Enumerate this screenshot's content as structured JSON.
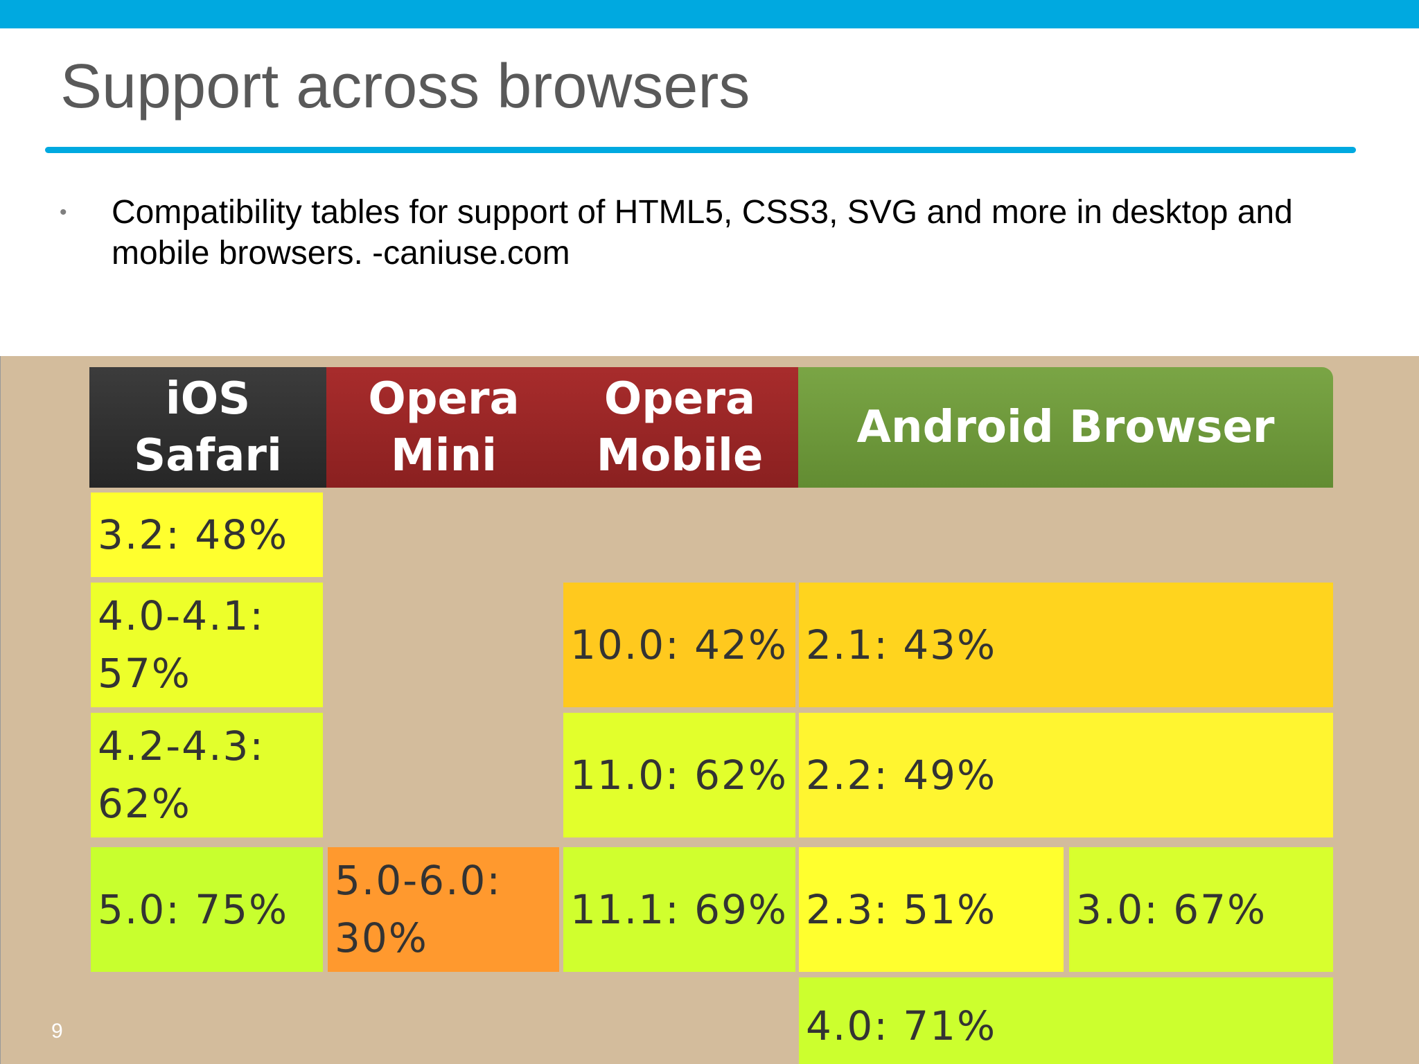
{
  "slide": {
    "title": "Support across browsers",
    "bullet": "Compatibility tables for support of HTML5, CSS3, SVG and more in desktop and mobile browsers. -caniuse.com",
    "page_number": "9"
  },
  "colors": {
    "accent": "#00a9e0",
    "background_tan": "#d3bc9c",
    "ios_header": "#333333",
    "opera_header": "#9b2626",
    "android_header": "#6e9a3a"
  },
  "table": {
    "headers": [
      "iOS Safari",
      "Opera Mini",
      "Opera Mobile",
      "Android Browser"
    ],
    "ios_safari": [
      "3.2: 48%",
      "4.0-4.1: 57%",
      "4.2-4.3: 62%",
      "5.0: 75%"
    ],
    "opera_mini": [
      "5.0-6.0: 30%"
    ],
    "opera_mobile": [
      "10.0: 42%",
      "11.0: 62%",
      "11.1: 69%"
    ],
    "android_browser": [
      "2.1: 43%",
      "2.2: 49%",
      "2.3: 51%",
      "3.0: 67%",
      "4.0: 71%"
    ]
  }
}
